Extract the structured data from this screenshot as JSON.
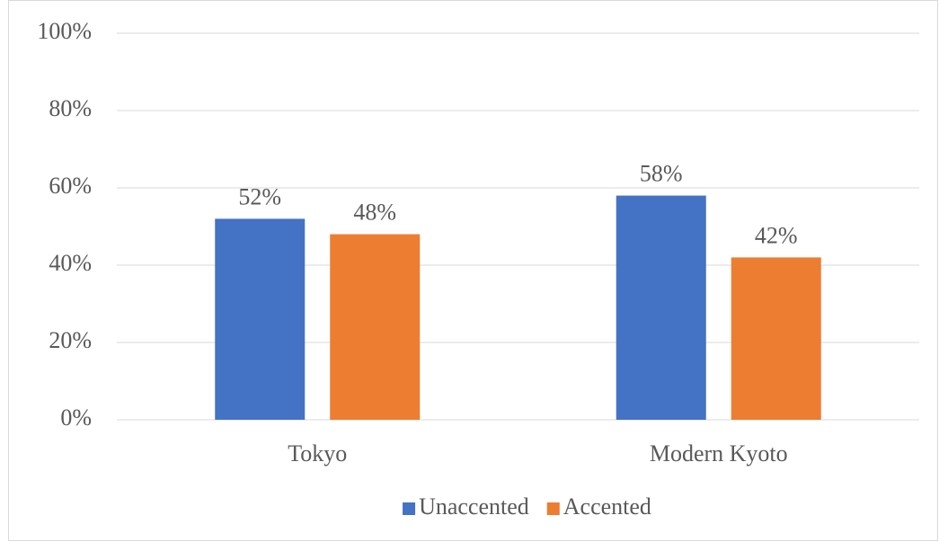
{
  "chart_data": {
    "type": "bar",
    "categories": [
      "Tokyo",
      "Modern Kyoto"
    ],
    "series": [
      {
        "name": "Unaccented",
        "color": "#4472c4",
        "values": [
          52,
          58
        ],
        "value_labels": [
          "52%",
          "58%"
        ]
      },
      {
        "name": "Accented",
        "color": "#ed7d31",
        "values": [
          48,
          42
        ],
        "value_labels": [
          "48%",
          "42%"
        ]
      }
    ],
    "ylim": [
      0,
      100
    ],
    "yticks": [
      {
        "value": 0,
        "label": "0%"
      },
      {
        "value": 20,
        "label": "20%"
      },
      {
        "value": 40,
        "label": "40%"
      },
      {
        "value": 60,
        "label": "60%"
      },
      {
        "value": 80,
        "label": "80%"
      },
      {
        "value": 100,
        "label": "100%"
      }
    ],
    "grid": true,
    "legend": "bottom"
  }
}
